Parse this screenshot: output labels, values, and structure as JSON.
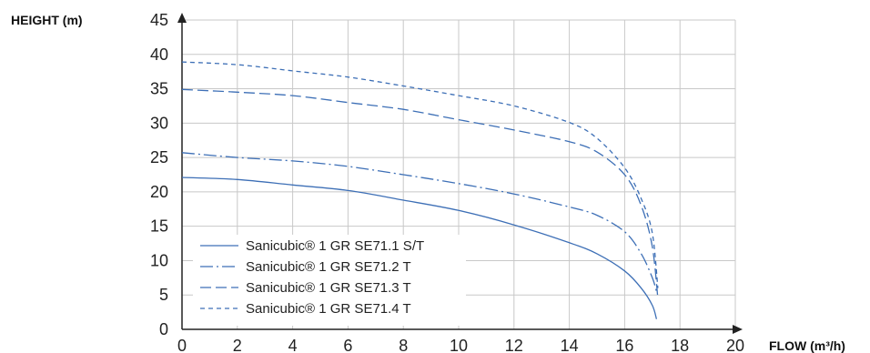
{
  "chart_data": {
    "type": "line",
    "ylabel": "HEIGHT (m)",
    "xlabel": "FLOW (m³/h)",
    "xlim": [
      0,
      20
    ],
    "ylim": [
      0,
      45
    ],
    "xticks": [
      0,
      2,
      4,
      6,
      8,
      10,
      12,
      14,
      16,
      18,
      20
    ],
    "yticks": [
      0,
      5,
      10,
      15,
      20,
      25,
      30,
      35,
      40,
      45
    ],
    "grid": true,
    "legend_position": "bottom-left",
    "line_color": "#3d6fb6",
    "series": [
      {
        "name": "Sanicubic® 1 GR SE71.1 S/T",
        "dash": "solid",
        "points": [
          [
            0,
            22.1
          ],
          [
            2,
            21.8
          ],
          [
            4,
            21.0
          ],
          [
            6,
            20.2
          ],
          [
            8,
            18.8
          ],
          [
            10,
            17.3
          ],
          [
            12,
            15.2
          ],
          [
            14,
            12.6
          ],
          [
            15,
            11.0
          ],
          [
            16,
            8.5
          ],
          [
            16.6,
            6.0
          ],
          [
            17,
            3.5
          ],
          [
            17.15,
            1.5
          ]
        ]
      },
      {
        "name": "Sanicubic® 1 GR SE71.2 T",
        "dash": "dashdot",
        "points": [
          [
            0,
            25.7
          ],
          [
            2,
            25.0
          ],
          [
            4,
            24.5
          ],
          [
            6,
            23.7
          ],
          [
            8,
            22.5
          ],
          [
            10,
            21.2
          ],
          [
            12,
            19.7
          ],
          [
            14,
            17.8
          ],
          [
            15,
            16.6
          ],
          [
            16,
            14.2
          ],
          [
            16.6,
            11.0
          ],
          [
            17,
            7.5
          ],
          [
            17.15,
            5.5
          ]
        ]
      },
      {
        "name": "Sanicubic® 1 GR SE71.3 T",
        "dash": "longdash",
        "points": [
          [
            0,
            34.9
          ],
          [
            2,
            34.5
          ],
          [
            4,
            34.0
          ],
          [
            6,
            33.0
          ],
          [
            8,
            32.0
          ],
          [
            10,
            30.5
          ],
          [
            12,
            29.0
          ],
          [
            14,
            27.3
          ],
          [
            15,
            25.8
          ],
          [
            16,
            22.5
          ],
          [
            16.6,
            18.0
          ],
          [
            17,
            12.0
          ],
          [
            17.2,
            4.5
          ]
        ]
      },
      {
        "name": "Sanicubic® 1 GR SE71.4 T",
        "dash": "shortdash",
        "points": [
          [
            0,
            38.9
          ],
          [
            2,
            38.5
          ],
          [
            4,
            37.6
          ],
          [
            6,
            36.7
          ],
          [
            8,
            35.4
          ],
          [
            10,
            34.0
          ],
          [
            12,
            32.5
          ],
          [
            14,
            30.1
          ],
          [
            15,
            27.8
          ],
          [
            16,
            23.5
          ],
          [
            16.6,
            19.0
          ],
          [
            17,
            14.0
          ],
          [
            17.2,
            6.0
          ]
        ]
      }
    ]
  }
}
